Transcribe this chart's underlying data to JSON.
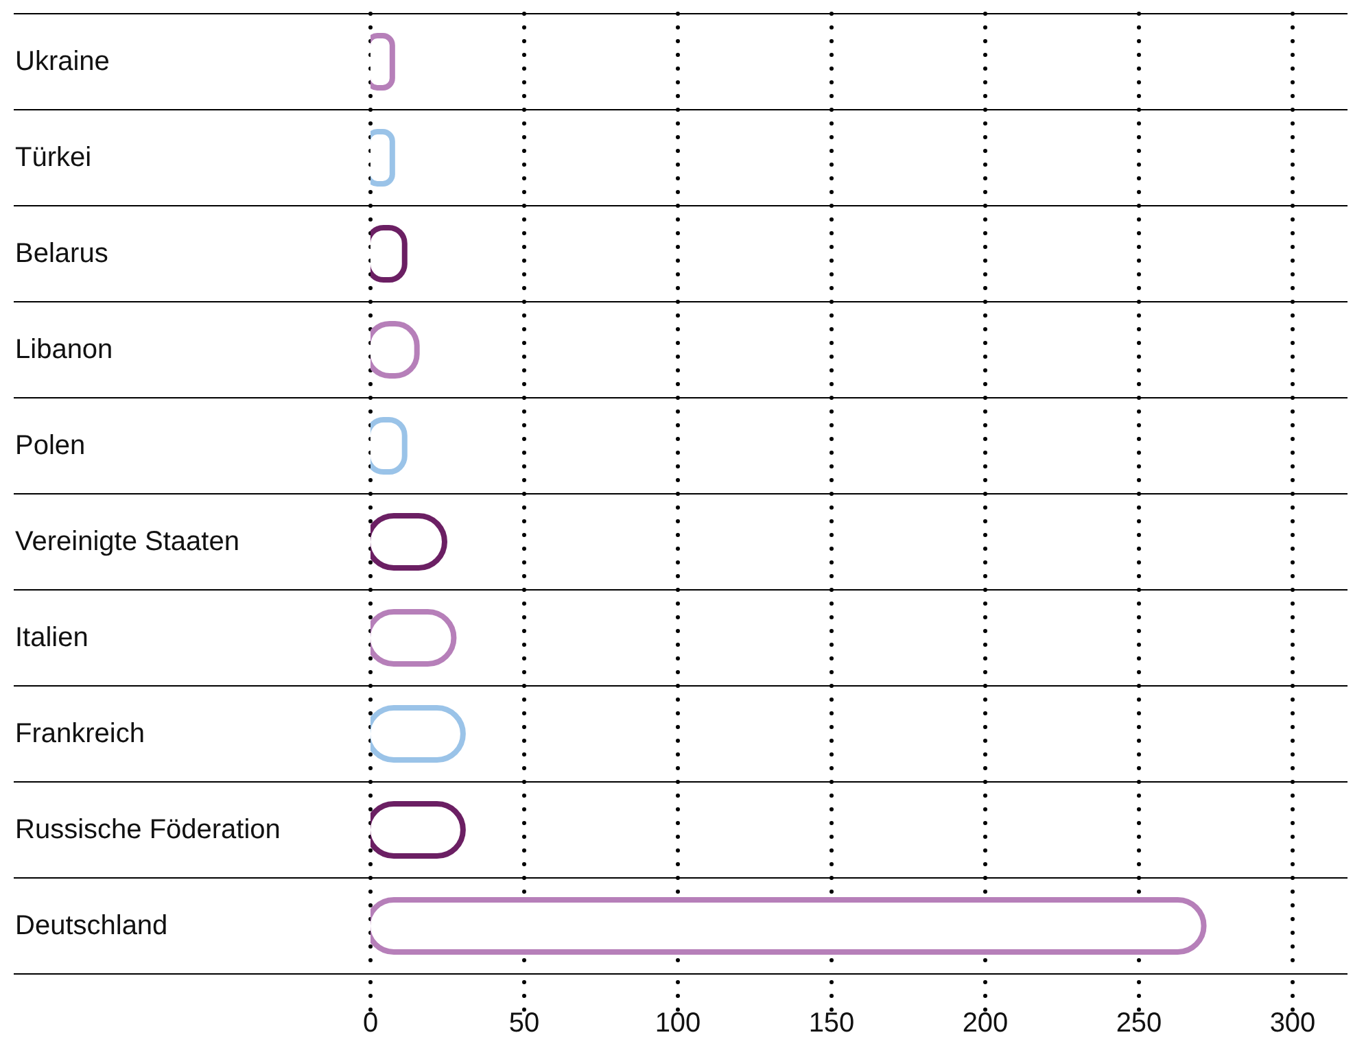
{
  "chart_data": {
    "type": "bar",
    "orientation": "horizontal",
    "categories": [
      "Ukraine",
      "Türkei",
      "Belarus",
      "Libanon",
      "Polen",
      "Vereinigte Staaten",
      "Italien",
      "Frankreich",
      "Russische Föderation",
      "Deutschland"
    ],
    "values": [
      8,
      8,
      12,
      16,
      12,
      25,
      28,
      31,
      31,
      272
    ],
    "colors": [
      "#b67fb9",
      "#9ac3e8",
      "#6b1f63",
      "#b67fb9",
      "#9ac3e8",
      "#6b1f63",
      "#b67fb9",
      "#9ac3e8",
      "#6b1f63",
      "#b67fb9"
    ],
    "xlim": [
      0,
      300
    ],
    "xticks": [
      0,
      50,
      100,
      150,
      200,
      250,
      300
    ],
    "grid": "x",
    "legend": false
  }
}
